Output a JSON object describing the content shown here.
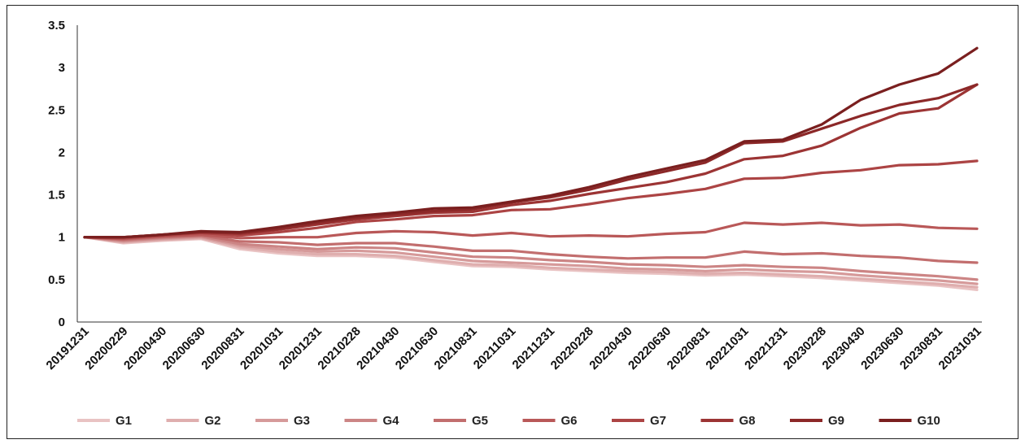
{
  "chart_data": {
    "type": "line",
    "title": "",
    "xlabel": "",
    "ylabel": "",
    "ylim": [
      0,
      3.5
    ],
    "yticks": [
      "0",
      "0.5",
      "1",
      "1.5",
      "2",
      "2.5",
      "3",
      "3.5"
    ],
    "ytick_values": [
      0,
      0.5,
      1,
      1.5,
      2,
      2.5,
      3,
      3.5
    ],
    "categories": [
      "20191231",
      "20200229",
      "20200430",
      "20200630",
      "20200831",
      "20201031",
      "20201231",
      "20210228",
      "20210430",
      "20210630",
      "20210831",
      "20211031",
      "20211231",
      "20220228",
      "20220430",
      "20220630",
      "20220831",
      "20221031",
      "20221231",
      "20230228",
      "20230430",
      "20230630",
      "20230831",
      "20231031"
    ],
    "legend_position": "bottom",
    "series": [
      {
        "name": "G1",
        "color": "#e9c3c3",
        "values": [
          1.0,
          0.93,
          0.96,
          0.98,
          0.86,
          0.81,
          0.78,
          0.78,
          0.76,
          0.71,
          0.66,
          0.65,
          0.62,
          0.6,
          0.58,
          0.57,
          0.55,
          0.56,
          0.54,
          0.52,
          0.49,
          0.46,
          0.43,
          0.38
        ]
      },
      {
        "name": "G2",
        "color": "#dfaeae",
        "values": [
          1.0,
          0.94,
          0.97,
          0.99,
          0.88,
          0.83,
          0.8,
          0.8,
          0.78,
          0.73,
          0.68,
          0.67,
          0.64,
          0.62,
          0.6,
          0.59,
          0.57,
          0.58,
          0.56,
          0.54,
          0.51,
          0.48,
          0.45,
          0.41
        ]
      },
      {
        "name": "G3",
        "color": "#d69a9a",
        "values": [
          1.0,
          0.95,
          0.98,
          1.0,
          0.9,
          0.86,
          0.83,
          0.84,
          0.82,
          0.77,
          0.72,
          0.7,
          0.68,
          0.66,
          0.63,
          0.62,
          0.6,
          0.62,
          0.6,
          0.59,
          0.55,
          0.52,
          0.49,
          0.45
        ]
      },
      {
        "name": "G4",
        "color": "#cc8585",
        "values": [
          1.0,
          0.96,
          0.99,
          1.01,
          0.92,
          0.89,
          0.86,
          0.88,
          0.87,
          0.82,
          0.77,
          0.76,
          0.73,
          0.71,
          0.68,
          0.67,
          0.65,
          0.67,
          0.65,
          0.64,
          0.6,
          0.57,
          0.54,
          0.5
        ]
      },
      {
        "name": "G5",
        "color": "#c26e6e",
        "values": [
          1.0,
          0.97,
          1.0,
          1.02,
          0.95,
          0.94,
          0.91,
          0.93,
          0.93,
          0.89,
          0.84,
          0.84,
          0.8,
          0.77,
          0.75,
          0.76,
          0.76,
          0.83,
          0.8,
          0.81,
          0.78,
          0.76,
          0.72,
          0.7
        ]
      },
      {
        "name": "G6",
        "color": "#b95858",
        "values": [
          1.0,
          0.98,
          1.01,
          1.03,
          0.99,
          1.0,
          1.0,
          1.05,
          1.07,
          1.06,
          1.02,
          1.05,
          1.01,
          1.02,
          1.01,
          1.04,
          1.06,
          1.17,
          1.15,
          1.17,
          1.14,
          1.15,
          1.11,
          1.1
        ]
      },
      {
        "name": "G7",
        "color": "#ac4444",
        "values": [
          1.0,
          0.99,
          1.02,
          1.05,
          1.02,
          1.06,
          1.11,
          1.18,
          1.21,
          1.25,
          1.26,
          1.32,
          1.33,
          1.39,
          1.46,
          1.51,
          1.57,
          1.69,
          1.7,
          1.76,
          1.79,
          1.85,
          1.86,
          1.9
        ]
      },
      {
        "name": "G8",
        "color": "#9c3434",
        "values": [
          1.0,
          1.0,
          1.03,
          1.06,
          1.04,
          1.09,
          1.15,
          1.21,
          1.25,
          1.29,
          1.3,
          1.38,
          1.43,
          1.51,
          1.58,
          1.65,
          1.75,
          1.92,
          1.96,
          2.08,
          2.29,
          2.46,
          2.52,
          2.8
        ]
      },
      {
        "name": "G9",
        "color": "#8c2828",
        "values": [
          1.0,
          1.0,
          1.03,
          1.06,
          1.05,
          1.1,
          1.17,
          1.23,
          1.27,
          1.31,
          1.33,
          1.41,
          1.47,
          1.56,
          1.68,
          1.78,
          1.88,
          2.11,
          2.13,
          2.28,
          2.43,
          2.56,
          2.64,
          2.8
        ]
      },
      {
        "name": "G10",
        "color": "#7a1f1f",
        "values": [
          1.0,
          1.0,
          1.03,
          1.07,
          1.06,
          1.12,
          1.19,
          1.25,
          1.29,
          1.34,
          1.35,
          1.42,
          1.49,
          1.59,
          1.71,
          1.81,
          1.91,
          2.13,
          2.15,
          2.33,
          2.62,
          2.8,
          2.93,
          3.23
        ]
      }
    ]
  }
}
